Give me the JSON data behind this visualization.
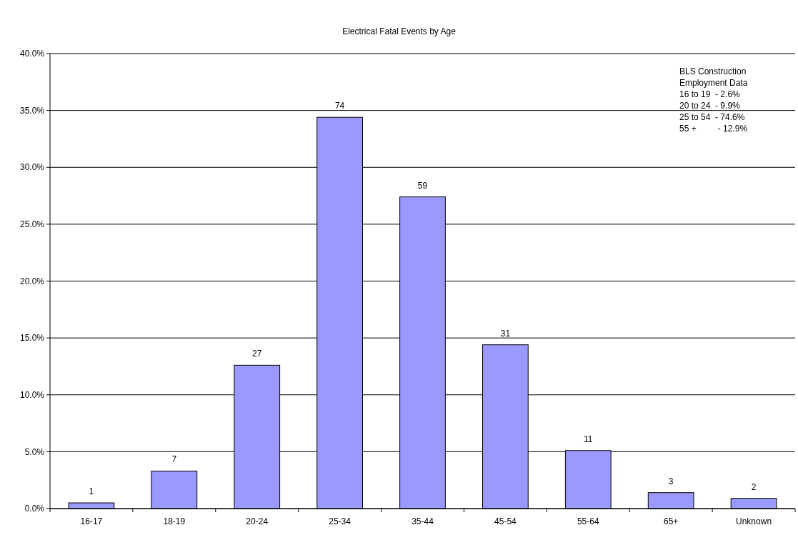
{
  "chart_data": {
    "type": "bar",
    "title": "Electrical Fatal Events by Age",
    "categories": [
      "16-17",
      "18-19",
      "20-24",
      "25-34",
      "35-44",
      "45-54",
      "55-64",
      "65+",
      "Unknown"
    ],
    "values": [
      0.5,
      3.3,
      12.6,
      34.4,
      27.4,
      14.4,
      5.1,
      1.4,
      0.9
    ],
    "color": "#9999ff",
    "ylim": [
      0,
      40
    ],
    "yticks": [
      {
        "value": 0,
        "label": "0.0%"
      },
      {
        "value": 5,
        "label": "5.0%"
      },
      {
        "value": 10,
        "label": "10.0%"
      },
      {
        "value": 15,
        "label": "15.0%"
      },
      {
        "value": 20,
        "label": "20.0%"
      },
      {
        "value": 25,
        "label": "25.0%"
      },
      {
        "value": 30,
        "label": "30.0%"
      },
      {
        "value": 35,
        "label": "35.0%"
      },
      {
        "value": 40,
        "label": "40.0%"
      }
    ],
    "grid": "y",
    "annotations": [
      {
        "text": "1",
        "x": "16-17",
        "y": 0.5
      },
      {
        "text": "7",
        "x": "18-19",
        "y": 3.3
      },
      {
        "text": "27",
        "x": "20-24",
        "y": 12.6
      },
      {
        "text": "74",
        "x": "25-34",
        "y": 34.4
      },
      {
        "text": "59",
        "x": "35-44",
        "y": 27.4
      },
      {
        "text": "31",
        "x": "45-54",
        "y": 14.4
      },
      {
        "text": "11",
        "x": "55-64",
        "y": 5.1
      },
      {
        "text": "3",
        "x": "65+",
        "y": 1.4
      },
      {
        "text": "2",
        "x": "Unknown",
        "y": 0.9
      },
      "BLS Construction",
      "Employment Data",
      "16 to 19  - 2.6%",
      "20 to 24  - 9.9%",
      "25 to 54  - 74.6%",
      "55 +         - 12.9%"
    ]
  }
}
